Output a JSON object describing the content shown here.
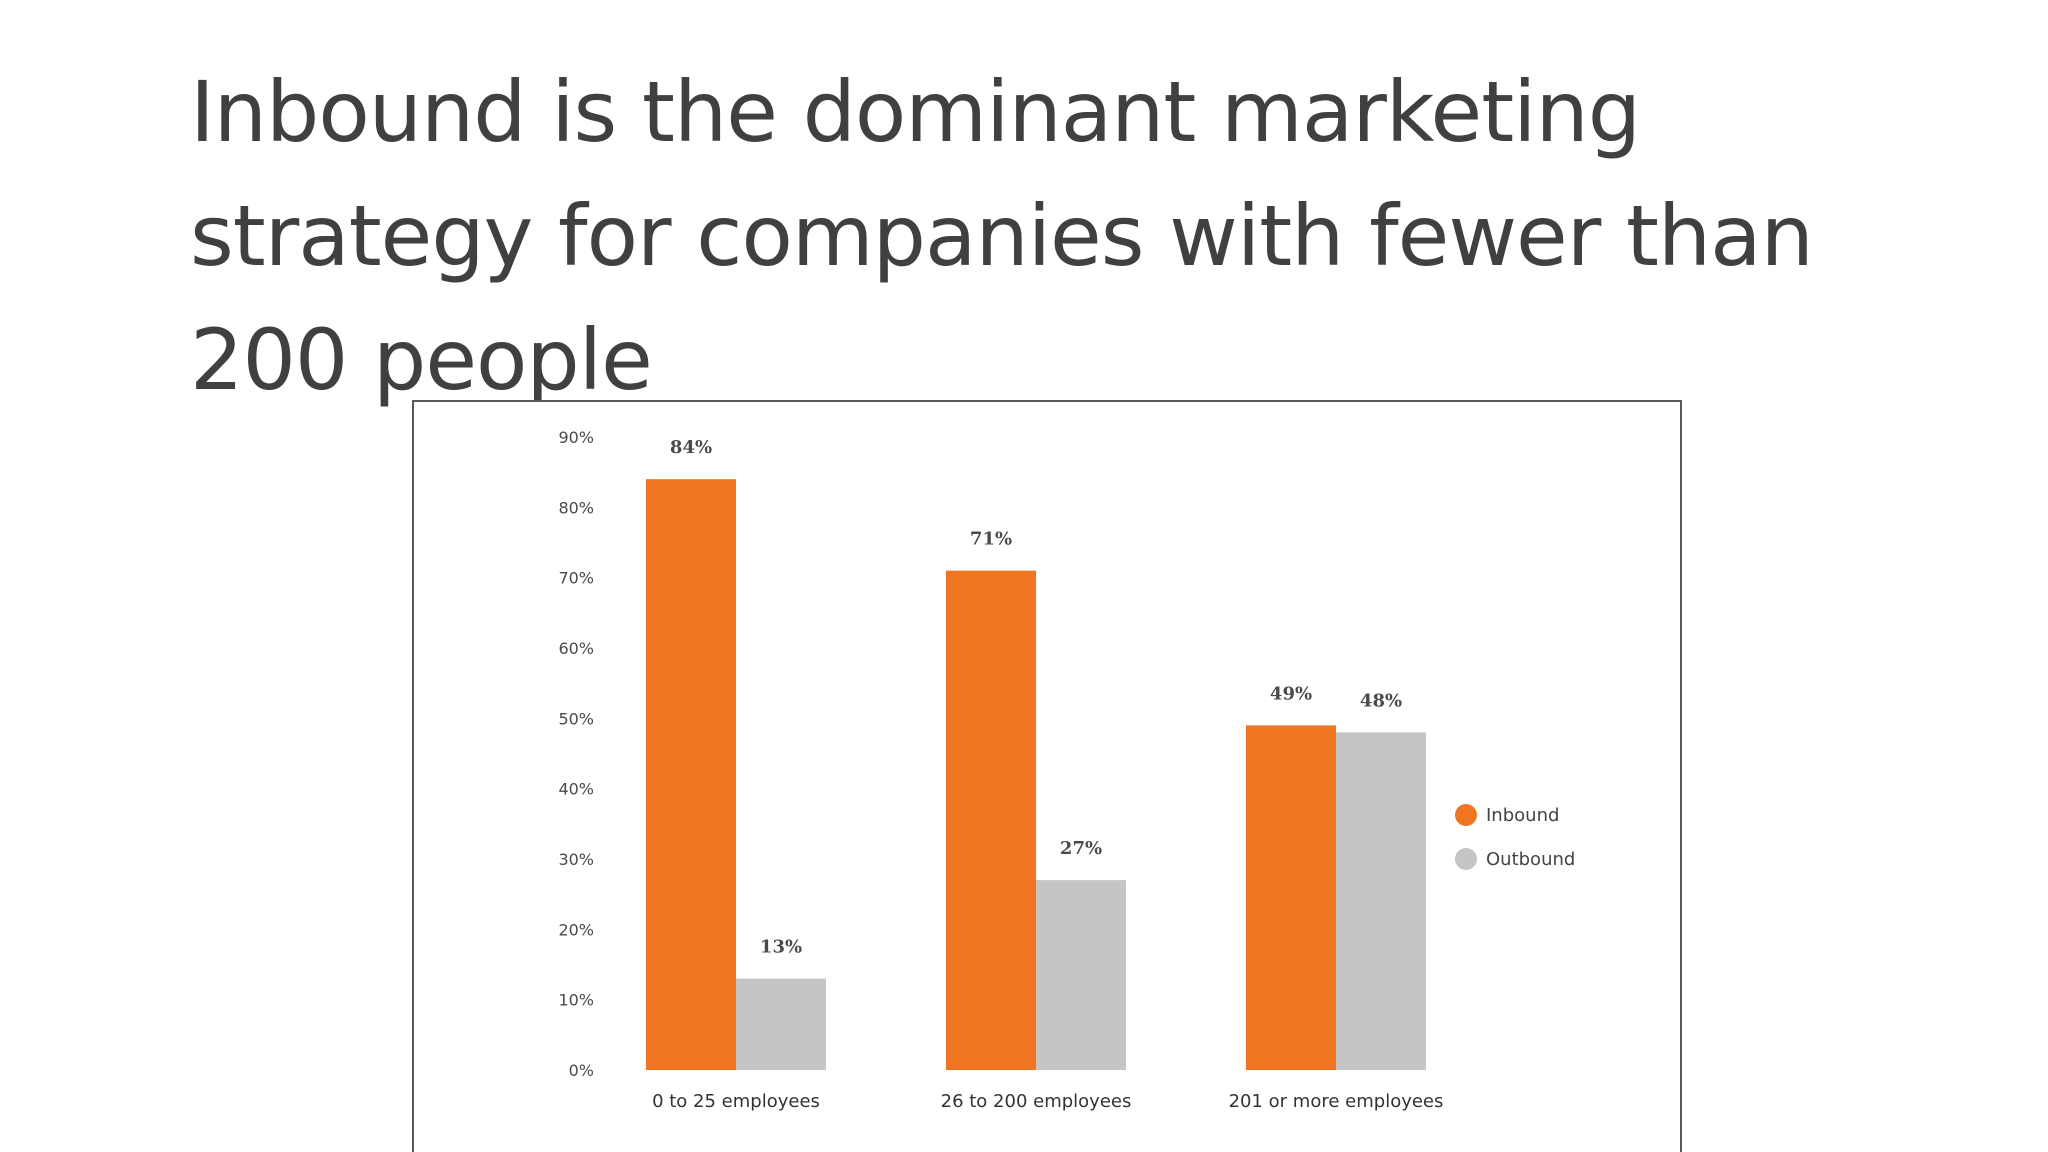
{
  "title": "Inbound is the dominant marketing strategy for companies with fewer than 200 people",
  "colors": {
    "inbound": "#f07522",
    "outbound": "#c6c5c5",
    "text": "#404040"
  },
  "chart_data": {
    "type": "bar",
    "categories": [
      "0 to 25 employees",
      "26 to 200 employees",
      "201 or more employees"
    ],
    "series": [
      {
        "name": "Inbound",
        "values": [
          84,
          71,
          49
        ],
        "labels": [
          "84%",
          "71%",
          "49%"
        ]
      },
      {
        "name": "Outbound",
        "values": [
          13,
          27,
          48
        ],
        "labels": [
          "13%",
          "27%",
          "48%"
        ]
      }
    ],
    "ylim": [
      0,
      90
    ],
    "yticks": [
      0,
      10,
      20,
      30,
      40,
      50,
      60,
      70,
      80,
      90
    ],
    "ytick_labels": [
      "0%",
      "10%",
      "20%",
      "30%",
      "40%",
      "50%",
      "60%",
      "70%",
      "80%",
      "90%"
    ],
    "legend": "right",
    "grid": false
  }
}
